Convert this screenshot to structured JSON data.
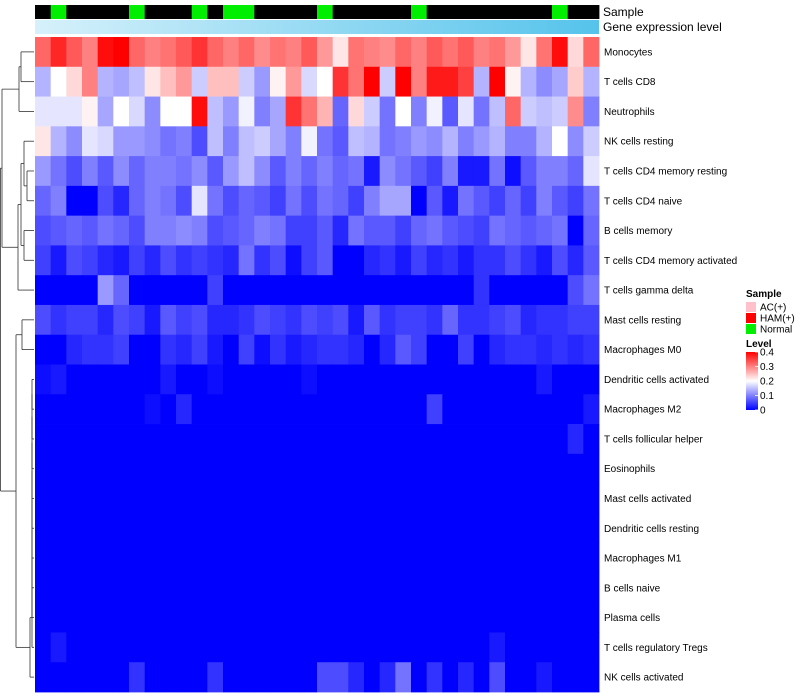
{
  "chart_data": {
    "type": "heatmap",
    "title": "",
    "annotation_labels": {
      "sample": "Sample",
      "expression": "Gene expression level"
    },
    "legend": {
      "sample_title": "Sample",
      "sample_entries": [
        {
          "label": "AC(+)",
          "color": "#ffc0cb"
        },
        {
          "label": "HAM(+)",
          "color": "#ff0000"
        },
        {
          "label": "Normal",
          "color": "#00ee00"
        }
      ],
      "level_title": "Level",
      "level_ticks": [
        "0.4",
        "0.3",
        "0.2",
        "0.1",
        "0"
      ],
      "level_range": [
        0,
        0.4
      ]
    },
    "colors": {
      "low": "#0000ff",
      "mid": "#ffffff",
      "high": "#ff0000",
      "expr_start": "#d6f1fb",
      "expr_end": "#55c3eb",
      "sample": {
        "AC": "#ffc0cb",
        "HAM": "#ff0000",
        "N": "#00ee00"
      }
    },
    "samples": [
      "H",
      "N",
      "A",
      "H",
      "H",
      "H",
      "N",
      "A",
      "A",
      "A",
      "N",
      "H",
      "N",
      "N",
      "A",
      "H",
      "A",
      "A",
      "N",
      "A",
      "A",
      "A",
      "A",
      "A",
      "N",
      "A",
      "H",
      "H",
      "H",
      "H",
      "H",
      "H",
      "A",
      "N",
      "A",
      "A"
    ],
    "rows": [
      "Monocytes",
      "T cells CD8",
      "Neutrophils",
      "NK cells resting",
      "T cells CD4 memory resting",
      "T cells CD4 naive",
      "B cells memory",
      "T cells CD4 memory activated",
      "T cells gamma delta",
      "Mast cells resting",
      "Macrophages M0",
      "Dendritic cells activated",
      "Macrophages M2",
      "T cells follicular helper",
      "Eosinophils",
      "Mast cells activated",
      "Dendritic cells resting",
      "Macrophages M1",
      "B cells naive",
      "Plasma cells",
      "T cells regulatory  Tregs",
      "NK cells activated"
    ],
    "values": [
      [
        0.32,
        0.37,
        0.33,
        0.3,
        0.39,
        0.4,
        0.32,
        0.3,
        0.31,
        0.33,
        0.36,
        0.32,
        0.3,
        0.32,
        0.29,
        0.31,
        0.3,
        0.33,
        0.28,
        0.22,
        0.31,
        0.3,
        0.29,
        0.32,
        0.3,
        0.33,
        0.31,
        0.33,
        0.3,
        0.31,
        0.28,
        0.22,
        0.31,
        0.39,
        0.23,
        0.32
      ],
      [
        0.14,
        0.2,
        0.23,
        0.3,
        0.14,
        0.13,
        0.15,
        0.22,
        0.25,
        0.28,
        0.16,
        0.25,
        0.25,
        0.16,
        0.12,
        0.21,
        0.28,
        0.17,
        0.2,
        0.36,
        0.31,
        0.4,
        0.16,
        0.4,
        0.3,
        0.38,
        0.38,
        0.35,
        0.14,
        0.4,
        0.21,
        0.14,
        0.11,
        0.13,
        0.24,
        0.14
      ],
      [
        0.18,
        0.18,
        0.18,
        0.21,
        0.13,
        0.2,
        0.17,
        0.11,
        0.2,
        0.2,
        0.39,
        0.15,
        0.12,
        0.19,
        0.1,
        0.13,
        0.36,
        0.31,
        0.26,
        0.08,
        0.23,
        0.16,
        0.09,
        0.2,
        0.1,
        0.19,
        0.07,
        0.18,
        0.09,
        0.15,
        0.32,
        0.16,
        0.15,
        0.16,
        0.29,
        0.1
      ],
      [
        0.22,
        0.14,
        0.11,
        0.18,
        0.17,
        0.12,
        0.12,
        0.11,
        0.09,
        0.1,
        0.06,
        0.15,
        0.1,
        0.15,
        0.16,
        0.13,
        0.1,
        0.19,
        0.09,
        0.07,
        0.15,
        0.14,
        0.09,
        0.1,
        0.12,
        0.11,
        0.14,
        0.1,
        0.12,
        0.14,
        0.1,
        0.1,
        0.14,
        0.2,
        0.11,
        0.16
      ],
      [
        0.12,
        0.09,
        0.06,
        0.1,
        0.07,
        0.11,
        0.08,
        0.1,
        0.1,
        0.09,
        0.11,
        0.07,
        0.12,
        0.15,
        0.11,
        0.07,
        0.1,
        0.08,
        0.1,
        0.08,
        0.09,
        0.02,
        0.11,
        0.09,
        0.07,
        0.05,
        0.1,
        0.02,
        0.02,
        0.09,
        0.01,
        0.07,
        0.1,
        0.1,
        0.08,
        0.18
      ],
      [
        0.08,
        0.1,
        0.0,
        0.0,
        0.06,
        0.03,
        0.08,
        0.1,
        0.09,
        0.06,
        0.18,
        0.09,
        0.06,
        0.08,
        0.07,
        0.05,
        0.09,
        0.06,
        0.09,
        0.08,
        0.05,
        0.1,
        0.13,
        0.13,
        0.0,
        0.07,
        0.02,
        0.09,
        0.07,
        0.05,
        0.08,
        0.05,
        0.1,
        0.07,
        0.05,
        0.09
      ],
      [
        0.06,
        0.07,
        0.08,
        0.07,
        0.09,
        0.08,
        0.06,
        0.1,
        0.1,
        0.11,
        0.1,
        0.06,
        0.07,
        0.08,
        0.1,
        0.09,
        0.05,
        0.05,
        0.07,
        0.03,
        0.09,
        0.07,
        0.07,
        0.05,
        0.08,
        0.09,
        0.07,
        0.06,
        0.05,
        0.09,
        0.08,
        0.07,
        0.08,
        0.09,
        0.0,
        0.08
      ],
      [
        0.05,
        0.02,
        0.06,
        0.05,
        0.03,
        0.02,
        0.05,
        0.03,
        0.06,
        0.04,
        0.05,
        0.04,
        0.03,
        0.09,
        0.04,
        0.06,
        0.01,
        0.05,
        0.07,
        0.0,
        0.0,
        0.03,
        0.04,
        0.02,
        0.05,
        0.03,
        0.04,
        0.02,
        0.04,
        0.04,
        0.06,
        0.04,
        0.02,
        0.06,
        0.03,
        0.07
      ],
      [
        0.0,
        0.0,
        0.0,
        0.0,
        0.12,
        0.08,
        0.0,
        0.0,
        0.0,
        0.0,
        0.0,
        0.05,
        0.0,
        0.0,
        0.0,
        0.0,
        0.0,
        0.0,
        0.0,
        0.0,
        0.0,
        0.0,
        0.0,
        0.0,
        0.0,
        0.0,
        0.0,
        0.0,
        0.04,
        0.0,
        0.0,
        0.0,
        0.0,
        0.0,
        0.06,
        0.09
      ],
      [
        0.06,
        0.04,
        0.05,
        0.05,
        0.03,
        0.06,
        0.05,
        0.02,
        0.07,
        0.05,
        0.06,
        0.03,
        0.03,
        0.04,
        0.06,
        0.05,
        0.04,
        0.06,
        0.05,
        0.06,
        0.02,
        0.07,
        0.04,
        0.05,
        0.05,
        0.04,
        0.08,
        0.04,
        0.04,
        0.05,
        0.06,
        0.03,
        0.04,
        0.04,
        0.05,
        0.05
      ],
      [
        0.0,
        0.0,
        0.03,
        0.04,
        0.04,
        0.05,
        0.0,
        0.0,
        0.04,
        0.03,
        0.05,
        0.02,
        0.0,
        0.05,
        0.01,
        0.04,
        0.02,
        0.03,
        0.04,
        0.04,
        0.03,
        0.0,
        0.03,
        0.07,
        0.05,
        0.0,
        0.0,
        0.05,
        0.0,
        0.03,
        0.04,
        0.04,
        0.03,
        0.04,
        0.03,
        0.04
      ],
      [
        0.01,
        0.02,
        0.0,
        0.0,
        0.0,
        0.0,
        0.0,
        0.0,
        0.02,
        0.0,
        0.0,
        0.01,
        0.0,
        0.0,
        0.0,
        0.0,
        0.0,
        0.01,
        0.0,
        0.0,
        0.0,
        0.0,
        0.0,
        0.0,
        0.0,
        0.0,
        0.0,
        0.0,
        0.0,
        0.0,
        0.0,
        0.0,
        0.02,
        0.0,
        0.0,
        0.0
      ],
      [
        0.0,
        0.0,
        0.0,
        0.0,
        0.0,
        0.0,
        0.0,
        0.01,
        0.0,
        0.03,
        0.0,
        0.0,
        0.0,
        0.0,
        0.0,
        0.0,
        0.0,
        0.0,
        0.0,
        0.0,
        0.0,
        0.0,
        0.0,
        0.0,
        0.0,
        0.05,
        0.0,
        0.0,
        0.0,
        0.0,
        0.0,
        0.0,
        0.0,
        0.0,
        0.0,
        0.02
      ],
      [
        0.0,
        0.0,
        0.0,
        0.0,
        0.0,
        0.0,
        0.0,
        0.0,
        0.0,
        0.0,
        0.0,
        0.0,
        0.0,
        0.0,
        0.0,
        0.0,
        0.0,
        0.0,
        0.0,
        0.0,
        0.0,
        0.0,
        0.0,
        0.0,
        0.0,
        0.0,
        0.0,
        0.0,
        0.0,
        0.0,
        0.0,
        0.0,
        0.0,
        0.0,
        0.03,
        0.0
      ],
      [
        0.0,
        0.0,
        0.0,
        0.0,
        0.0,
        0.0,
        0.0,
        0.0,
        0.0,
        0.0,
        0.0,
        0.0,
        0.0,
        0.0,
        0.0,
        0.0,
        0.0,
        0.0,
        0.0,
        0.0,
        0.0,
        0.0,
        0.0,
        0.0,
        0.0,
        0.0,
        0.0,
        0.0,
        0.0,
        0.0,
        0.0,
        0.0,
        0.0,
        0.0,
        0.0,
        0.0
      ],
      [
        0.0,
        0.0,
        0.0,
        0.0,
        0.0,
        0.0,
        0.0,
        0.0,
        0.0,
        0.0,
        0.0,
        0.0,
        0.0,
        0.0,
        0.0,
        0.0,
        0.0,
        0.0,
        0.0,
        0.0,
        0.0,
        0.0,
        0.0,
        0.0,
        0.0,
        0.0,
        0.0,
        0.0,
        0.0,
        0.0,
        0.0,
        0.0,
        0.0,
        0.0,
        0.0,
        0.0
      ],
      [
        0.0,
        0.0,
        0.0,
        0.0,
        0.0,
        0.0,
        0.0,
        0.0,
        0.0,
        0.0,
        0.0,
        0.0,
        0.0,
        0.0,
        0.0,
        0.0,
        0.0,
        0.0,
        0.0,
        0.0,
        0.0,
        0.0,
        0.0,
        0.0,
        0.0,
        0.0,
        0.0,
        0.0,
        0.0,
        0.0,
        0.0,
        0.0,
        0.0,
        0.0,
        0.0,
        0.0
      ],
      [
        0.0,
        0.0,
        0.0,
        0.0,
        0.0,
        0.0,
        0.0,
        0.0,
        0.0,
        0.0,
        0.0,
        0.0,
        0.0,
        0.0,
        0.0,
        0.0,
        0.0,
        0.0,
        0.0,
        0.0,
        0.0,
        0.0,
        0.0,
        0.0,
        0.0,
        0.0,
        0.0,
        0.0,
        0.0,
        0.0,
        0.0,
        0.0,
        0.0,
        0.0,
        0.0,
        0.0
      ],
      [
        0.0,
        0.0,
        0.0,
        0.0,
        0.0,
        0.0,
        0.0,
        0.0,
        0.0,
        0.0,
        0.0,
        0.0,
        0.0,
        0.0,
        0.0,
        0.0,
        0.0,
        0.0,
        0.0,
        0.0,
        0.0,
        0.0,
        0.0,
        0.0,
        0.0,
        0.0,
        0.0,
        0.0,
        0.0,
        0.0,
        0.0,
        0.0,
        0.0,
        0.0,
        0.0,
        0.0
      ],
      [
        0.0,
        0.0,
        0.0,
        0.0,
        0.0,
        0.0,
        0.0,
        0.0,
        0.0,
        0.0,
        0.0,
        0.0,
        0.0,
        0.0,
        0.0,
        0.0,
        0.0,
        0.0,
        0.0,
        0.0,
        0.0,
        0.0,
        0.0,
        0.0,
        0.0,
        0.0,
        0.0,
        0.0,
        0.0,
        0.0,
        0.0,
        0.0,
        0.0,
        0.0,
        0.0,
        0.0
      ],
      [
        0.0,
        0.02,
        0.0,
        0.0,
        0.0,
        0.0,
        0.0,
        0.0,
        0.0,
        0.0,
        0.0,
        0.0,
        0.0,
        0.0,
        0.0,
        0.0,
        0.0,
        0.0,
        0.0,
        0.0,
        0.0,
        0.0,
        0.0,
        0.0,
        0.0,
        0.0,
        0.0,
        0.0,
        0.0,
        0.02,
        0.0,
        0.0,
        0.0,
        0.0,
        0.0,
        0.0
      ],
      [
        0.0,
        0.0,
        0.0,
        0.0,
        0.0,
        0.0,
        0.04,
        0.0,
        0.0,
        0.0,
        0.0,
        0.04,
        0.0,
        0.0,
        0.0,
        0.0,
        0.0,
        0.0,
        0.06,
        0.06,
        0.03,
        0.0,
        0.03,
        0.09,
        0.0,
        0.04,
        0.0,
        0.03,
        0.0,
        0.06,
        0.0,
        0.0,
        0.02,
        0.0,
        0.0,
        0.0
      ]
    ]
  }
}
